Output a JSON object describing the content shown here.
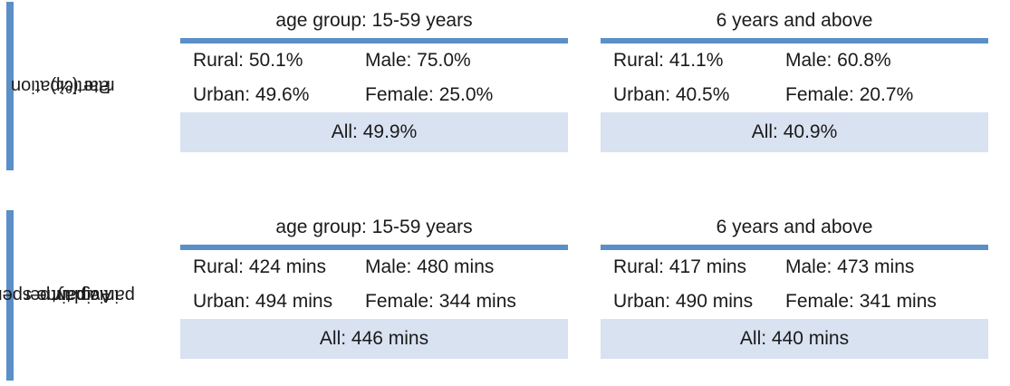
{
  "sections": [
    {
      "label": "Participation rate (%)",
      "label_lines": [
        "Participation",
        "rate (%)"
      ],
      "panels": [
        {
          "title": "age group: 15-59 years",
          "rural": "Rural: 50.1%",
          "male": "Male: 75.0%",
          "urban": "Urban: 49.6%",
          "female": "Female: 25.0%",
          "all": "All: 49.9%"
        },
        {
          "title": "6 years and above",
          "rural": "Rural: 41.1%",
          "male": "Male: 60.8%",
          "urban": "Urban: 40.5%",
          "female": "Female: 20.7%",
          "all": "All: 40.9%"
        }
      ]
    },
    {
      "label": "Avg. time spent in a day per participant",
      "label_lines": [
        "Avg. time spent",
        "in a day per",
        "participant"
      ],
      "panels": [
        {
          "title": "age group: 15-59 years",
          "rural": "Rural: 424 mins",
          "male": "Male: 480 mins",
          "urban": "Urban: 494 mins",
          "female": "Female: 344 mins",
          "all": "All: 446 mins"
        },
        {
          "title": "6 years and above",
          "rural": "Rural: 417 mins",
          "male": "Male: 473 mins",
          "urban": "Urban: 490 mins",
          "female": "Female: 341 mins",
          "all": "All: 440 mins"
        }
      ]
    }
  ],
  "colors": {
    "accent": "#5b8fc7",
    "total_fill": "#d9e2f1"
  }
}
